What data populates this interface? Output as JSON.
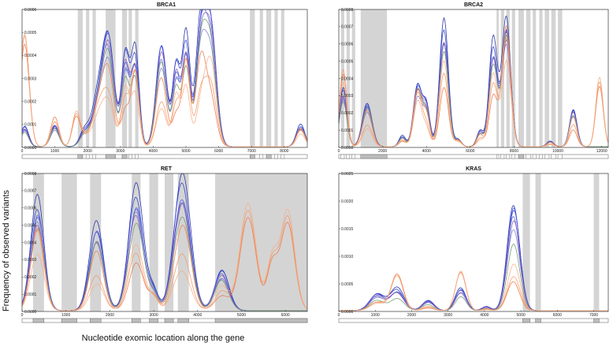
{
  "figure": {
    "ylabel": "Frequency of observed variants",
    "xlabel": "Nucleotide exomic location along the gene"
  },
  "colors": {
    "shade": "#d4d4d4",
    "blues": [
      "#1f2ea8",
      "#2b3fd0",
      "#4455e0",
      "#5b6ad8",
      "#7b7fcf"
    ],
    "oranges": [
      "#ee7a4a",
      "#f39a6a",
      "#f6b088"
    ],
    "green": "#6f9a6f",
    "purple": "#8a56b0"
  },
  "chart_data": [
    {
      "type": "line",
      "title": "BRCA1",
      "xlim": [
        0,
        8700
      ],
      "ylim": [
        0,
        0.0006
      ],
      "xticks": [
        0,
        1000,
        2000,
        3000,
        4000,
        5000,
        6000,
        7000,
        8000
      ],
      "yticks": [
        0.0,
        0.0001,
        0.0002,
        0.0003,
        0.0004,
        0.0005,
        0.0006
      ],
      "shaded_x": [
        [
          1700,
          1850
        ],
        [
          1950,
          2050
        ],
        [
          2150,
          2250
        ],
        [
          2550,
          2850
        ],
        [
          3050,
          3200
        ],
        [
          3250,
          3350
        ],
        [
          3450,
          3550
        ],
        [
          6950,
          7100
        ],
        [
          7250,
          7350
        ],
        [
          7450,
          7600
        ],
        [
          7700,
          7800
        ],
        [
          7900,
          8000
        ]
      ],
      "peaks": [
        {
          "x": 80,
          "y": 8e-05,
          "w": 120
        },
        {
          "x": 1000,
          "y": 9e-05,
          "w": 130
        },
        {
          "x": 1900,
          "y": 6e-05,
          "w": 140
        },
        {
          "x": 2350,
          "y": 0.00022,
          "w": 200
        },
        {
          "x": 2650,
          "y": 0.00041,
          "w": 170
        },
        {
          "x": 3150,
          "y": 0.00037,
          "w": 120
        },
        {
          "x": 3450,
          "y": 0.00038,
          "w": 120
        },
        {
          "x": 4250,
          "y": 0.00043,
          "w": 160
        },
        {
          "x": 4700,
          "y": 0.00032,
          "w": 110
        },
        {
          "x": 5000,
          "y": 0.00044,
          "w": 120
        },
        {
          "x": 5450,
          "y": 0.00048,
          "w": 150
        },
        {
          "x": 5750,
          "y": 0.00051,
          "w": 170
        },
        {
          "x": 8500,
          "y": 9e-05,
          "w": 130
        }
      ],
      "extra_orange": [
        {
          "x": 80,
          "y": 0.00024,
          "w": 140
        },
        {
          "x": 1000,
          "y": 4e-05,
          "w": 120
        },
        {
          "x": 1650,
          "y": 8e-05,
          "w": 120
        }
      ],
      "series": [
        {
          "color": "#1f2ea8",
          "scale": 1.08
        },
        {
          "color": "#2b3fd0",
          "scale": 1.02
        },
        {
          "color": "#4455e0",
          "scale": 0.96
        },
        {
          "color": "#5b6ad8",
          "scale": 0.9
        },
        {
          "color": "#7b7fcf",
          "scale": 0.84
        },
        {
          "color": "#8a56b0",
          "scale": 0.93
        },
        {
          "color": "#6f9a6f",
          "scale": 0.82
        },
        {
          "color": "#ee7a4a",
          "scale": 0.78,
          "orange": true
        },
        {
          "color": "#f39a6a",
          "scale": 0.72,
          "orange": true
        },
        {
          "color": "#f6b088",
          "scale": 0.66,
          "orange": true
        }
      ]
    },
    {
      "type": "line",
      "title": "BRCA2",
      "xlim": [
        0,
        12300
      ],
      "ylim": [
        0,
        0.0008
      ],
      "xticks": [
        0,
        2000,
        4000,
        6000,
        8000,
        10000,
        12000
      ],
      "yticks": [
        0.0,
        0.0001,
        0.0002,
        0.0003,
        0.0004,
        0.0005,
        0.0006,
        0.0007,
        0.0008
      ],
      "shaded_x": [
        [
          100,
          250
        ],
        [
          350,
          500
        ],
        [
          600,
          750
        ],
        [
          1000,
          2200
        ],
        [
          7200,
          7300
        ],
        [
          7400,
          7550
        ],
        [
          7650,
          7800
        ],
        [
          7900,
          8050
        ],
        [
          8200,
          8450
        ],
        [
          8550,
          8750
        ],
        [
          8850,
          9000
        ],
        [
          9150,
          9300
        ],
        [
          9400,
          9600
        ],
        [
          9700,
          9900
        ],
        [
          10000,
          10200
        ]
      ],
      "peaks": [
        {
          "x": 200,
          "y": 0.00032,
          "w": 170
        },
        {
          "x": 1300,
          "y": 0.00025,
          "w": 220
        },
        {
          "x": 2900,
          "y": 6e-05,
          "w": 150
        },
        {
          "x": 3600,
          "y": 0.00036,
          "w": 190
        },
        {
          "x": 4000,
          "y": 0.00023,
          "w": 160
        },
        {
          "x": 4800,
          "y": 0.00068,
          "w": 200
        },
        {
          "x": 5450,
          "y": 4e-05,
          "w": 150
        },
        {
          "x": 6450,
          "y": 9e-05,
          "w": 150
        },
        {
          "x": 7050,
          "y": 0.00058,
          "w": 190
        },
        {
          "x": 7650,
          "y": 0.00072,
          "w": 200
        },
        {
          "x": 9650,
          "y": 3e-05,
          "w": 160
        },
        {
          "x": 10700,
          "y": 0.00021,
          "w": 170
        }
      ],
      "extra_orange": [
        {
          "x": 11900,
          "y": 0.00022,
          "w": 170
        },
        {
          "x": 200,
          "y": 8e-05,
          "w": 150
        }
      ],
      "series": [
        {
          "color": "#1f2ea8",
          "scale": 1.04
        },
        {
          "color": "#2b3fd0",
          "scale": 0.98
        },
        {
          "color": "#4455e0",
          "scale": 0.93
        },
        {
          "color": "#5b6ad8",
          "scale": 0.88
        },
        {
          "color": "#7b7fcf",
          "scale": 0.84
        },
        {
          "color": "#8a56b0",
          "scale": 0.9
        },
        {
          "color": "#6f9a6f",
          "scale": 0.86
        },
        {
          "color": "#ee7a4a",
          "scale": 0.88,
          "orange": true
        },
        {
          "color": "#f39a6a",
          "scale": 0.8,
          "orange": true
        },
        {
          "color": "#f6b088",
          "scale": 0.74,
          "orange": true
        }
      ]
    },
    {
      "type": "line",
      "title": "RET",
      "xlim": [
        0,
        6500
      ],
      "ylim": [
        0,
        0.0008
      ],
      "xticks": [
        0,
        1000,
        2000,
        3000,
        4000,
        5000,
        6000
      ],
      "yticks": [
        0.0,
        0.0001,
        0.0002,
        0.0003,
        0.0004,
        0.0005,
        0.0006,
        0.0007,
        0.0008
      ],
      "shaded_x": [
        [
          250,
          500
        ],
        [
          900,
          1250
        ],
        [
          1550,
          1800
        ],
        [
          2500,
          2700
        ],
        [
          2900,
          3100
        ],
        [
          3250,
          3450
        ],
        [
          3550,
          3800
        ],
        [
          4400,
          6500
        ]
      ],
      "peaks": [
        {
          "x": 350,
          "y": 0.00062,
          "w": 150
        },
        {
          "x": 1700,
          "y": 0.0005,
          "w": 160
        },
        {
          "x": 2600,
          "y": 0.00068,
          "w": 170
        },
        {
          "x": 3000,
          "y": 0.00011,
          "w": 110
        },
        {
          "x": 3650,
          "y": 0.00074,
          "w": 190
        },
        {
          "x": 4550,
          "y": 0.00023,
          "w": 160
        }
      ],
      "extra_orange": [
        {
          "x": 5150,
          "y": 0.00034,
          "w": 180
        },
        {
          "x": 5700,
          "y": 0.00016,
          "w": 120
        },
        {
          "x": 6050,
          "y": 0.00032,
          "w": 160
        }
      ],
      "series": [
        {
          "color": "#1f2ea8",
          "scale": 1.03
        },
        {
          "color": "#2b3fd0",
          "scale": 0.97
        },
        {
          "color": "#4455e0",
          "scale": 0.92
        },
        {
          "color": "#5b6ad8",
          "scale": 0.86
        },
        {
          "color": "#7b7fcf",
          "scale": 0.8
        },
        {
          "color": "#8a56b0",
          "scale": 0.84
        },
        {
          "color": "#6f9a6f",
          "scale": 0.78
        },
        {
          "color": "#ee7a4a",
          "scale": 0.7,
          "orange": true
        },
        {
          "color": "#f39a6a",
          "scale": 0.64,
          "orange": true
        },
        {
          "color": "#f6b088",
          "scale": 0.58,
          "orange": true
        }
      ]
    },
    {
      "type": "line",
      "title": "KRAS",
      "xlim": [
        0,
        7400
      ],
      "ylim": [
        0,
        0.0025
      ],
      "xticks": [
        0,
        1000,
        2000,
        3000,
        4000,
        5000,
        6000,
        7000
      ],
      "yticks": [
        0.0,
        0.0005,
        0.001,
        0.0015,
        0.002,
        0.0025
      ],
      "shaded_x": [
        [
          5050,
          5250
        ],
        [
          5400,
          5550
        ],
        [
          7000,
          7150
        ]
      ],
      "peaks": [
        {
          "x": 1050,
          "y": 0.0003,
          "w": 200
        },
        {
          "x": 1600,
          "y": 0.00038,
          "w": 190
        },
        {
          "x": 2450,
          "y": 0.00018,
          "w": 160
        },
        {
          "x": 3350,
          "y": 0.0004,
          "w": 150
        },
        {
          "x": 4050,
          "y": 7e-05,
          "w": 120
        },
        {
          "x": 4800,
          "y": 0.0019,
          "w": 170
        }
      ],
      "extra_orange": [
        {
          "x": 1600,
          "y": 0.0003,
          "w": 160
        },
        {
          "x": 3350,
          "y": 0.0003,
          "w": 140
        }
      ],
      "series": [
        {
          "color": "#1f2ea8",
          "scale": 1.05
        },
        {
          "color": "#2b3fd0",
          "scale": 0.99
        },
        {
          "color": "#4455e0",
          "scale": 0.93
        },
        {
          "color": "#5b6ad8",
          "scale": 0.88
        },
        {
          "color": "#7b7fcf",
          "scale": 0.82
        },
        {
          "color": "#8a56b0",
          "scale": 0.86
        },
        {
          "color": "#6f9a6f",
          "scale": 0.6
        },
        {
          "color": "#ee7a4a",
          "scale": 0.5,
          "orange": true
        },
        {
          "color": "#f39a6a",
          "scale": 0.46,
          "orange": true
        },
        {
          "color": "#f6b088",
          "scale": 0.42,
          "orange": true
        }
      ]
    }
  ]
}
